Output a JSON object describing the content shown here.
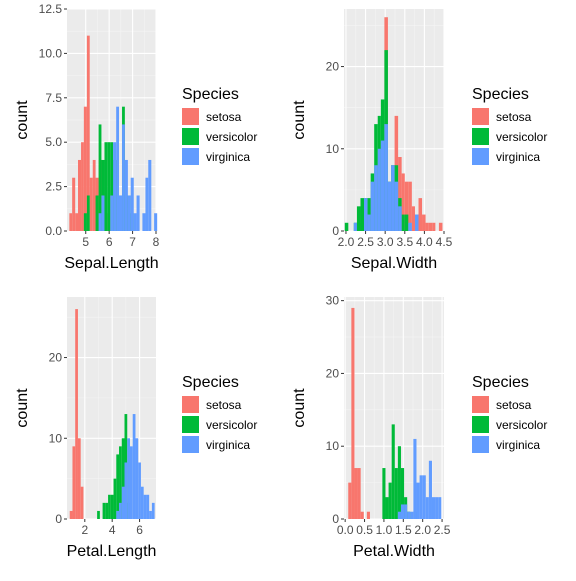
{
  "colors": {
    "panel_bg": "#ebebeb",
    "grid_major": "#ffffff",
    "grid_minor": "#f5f5f5",
    "tick": "#333333",
    "species": [
      "#f8766d",
      "#00ba38",
      "#619cff"
    ]
  },
  "chart_data": [
    {
      "type": "bar",
      "xlabel": "Sepal.Length",
      "ylabel": "count",
      "xlim": [
        4.2,
        8.0
      ],
      "ylim": [
        0,
        12.5
      ],
      "xticks": [
        5,
        6,
        7,
        8
      ],
      "xtick_labels": [
        "5",
        "6",
        "7",
        "8"
      ],
      "yticks": [
        0,
        2.5,
        5,
        7.5,
        10,
        12.5
      ],
      "ytick_labels": [
        "0.0",
        "2.5",
        "5.0",
        "7.5",
        "10.0",
        "12.5"
      ],
      "legend": {
        "title": "Species",
        "labels": [
          "setosa",
          "versicolor",
          "virginica"
        ],
        "position": "right"
      },
      "series": [
        {
          "name": "setosa",
          "bins": [
            [
              4.3,
              4.42,
              1
            ],
            [
              4.42,
              4.55,
              3
            ],
            [
              4.55,
              4.67,
              1
            ],
            [
              4.67,
              4.8,
              4
            ],
            [
              4.8,
              4.92,
              5
            ],
            [
              4.92,
              5.05,
              7
            ],
            [
              5.05,
              5.17,
              11
            ],
            [
              5.17,
              5.3,
              3
            ],
            [
              5.3,
              5.42,
              4
            ],
            [
              5.42,
              5.55,
              3
            ],
            [
              5.55,
              5.67,
              4
            ],
            [
              5.67,
              5.8,
              2
            ],
            [
              5.8,
              5.92,
              1
            ]
          ]
        },
        {
          "name": "versicolor",
          "bins": [
            [
              4.92,
              5.05,
              1
            ],
            [
              5.05,
              5.17,
              2
            ],
            [
              5.42,
              5.55,
              2
            ],
            [
              5.55,
              5.67,
              6
            ],
            [
              5.67,
              5.8,
              4
            ],
            [
              5.8,
              5.92,
              5
            ],
            [
              5.92,
              6.05,
              5
            ],
            [
              6.05,
              6.17,
              5
            ],
            [
              6.17,
              6.3,
              4
            ],
            [
              6.3,
              6.42,
              4
            ],
            [
              6.42,
              6.55,
              2
            ],
            [
              6.55,
              6.67,
              7
            ],
            [
              6.67,
              6.8,
              2
            ],
            [
              6.8,
              6.92,
              2
            ],
            [
              6.92,
              7.05,
              1
            ]
          ]
        },
        {
          "name": "virginica",
          "bins": [
            [
              5.55,
              5.67,
              1
            ],
            [
              5.67,
              5.8,
              2
            ],
            [
              6.05,
              6.17,
              2
            ],
            [
              6.17,
              6.3,
              5
            ],
            [
              6.3,
              6.42,
              7
            ],
            [
              6.42,
              6.55,
              2
            ],
            [
              6.55,
              6.67,
              6
            ],
            [
              6.67,
              6.8,
              4
            ],
            [
              6.8,
              6.92,
              2
            ],
            [
              6.92,
              7.05,
              3
            ],
            [
              7.05,
              7.17,
              1
            ],
            [
              7.17,
              7.3,
              2
            ],
            [
              7.42,
              7.55,
              1
            ],
            [
              7.55,
              7.67,
              3
            ],
            [
              7.67,
              7.8,
              4
            ],
            [
              7.92,
              8.05,
              1
            ]
          ]
        }
      ]
    },
    {
      "type": "bar",
      "xlabel": "Sepal.Width",
      "ylabel": "count",
      "xlim": [
        1.95,
        4.5
      ],
      "ylim": [
        0,
        27
      ],
      "xticks": [
        2.0,
        2.5,
        3.0,
        3.5,
        4.0,
        4.5
      ],
      "xtick_labels": [
        "2.0",
        "2.5",
        "3.0",
        "3.5",
        "4.0",
        "4.5"
      ],
      "yticks": [
        0,
        10,
        20
      ],
      "ytick_labels": [
        "0",
        "10",
        "20"
      ],
      "legend": {
        "title": "Species",
        "labels": [
          "setosa",
          "versicolor",
          "virginica"
        ],
        "position": "right"
      },
      "series": [
        {
          "name": "setosa",
          "bins": [
            [
              2.28,
              2.37,
              1
            ],
            [
              2.89,
              2.98,
              6
            ],
            [
              2.98,
              3.07,
              26
            ],
            [
              3.07,
              3.15,
              5
            ],
            [
              3.15,
              3.24,
              5
            ],
            [
              3.24,
              3.33,
              14
            ],
            [
              3.33,
              3.42,
              9
            ],
            [
              3.42,
              3.5,
              7
            ],
            [
              3.5,
              3.59,
              6
            ],
            [
              3.59,
              3.68,
              6
            ],
            [
              3.68,
              3.76,
              3
            ],
            [
              3.76,
              3.85,
              2
            ],
            [
              3.85,
              3.94,
              4
            ],
            [
              3.94,
              4.03,
              2
            ],
            [
              4.03,
              4.11,
              1
            ],
            [
              4.11,
              4.2,
              1
            ],
            [
              4.2,
              4.28,
              1
            ],
            [
              4.37,
              4.46,
              1
            ]
          ]
        },
        {
          "name": "versicolor",
          "bins": [
            [
              1.97,
              2.06,
              1
            ],
            [
              2.2,
              2.28,
              1
            ],
            [
              2.28,
              2.37,
              3
            ],
            [
              2.37,
              2.46,
              4
            ],
            [
              2.46,
              2.55,
              4
            ],
            [
              2.55,
              2.63,
              4
            ],
            [
              2.63,
              2.72,
              7
            ],
            [
              2.72,
              2.81,
              13
            ],
            [
              2.81,
              2.89,
              14
            ],
            [
              2.89,
              2.98,
              16
            ],
            [
              2.98,
              3.07,
              22
            ],
            [
              3.07,
              3.15,
              6
            ],
            [
              3.15,
              3.24,
              8
            ],
            [
              3.24,
              3.33,
              8
            ],
            [
              3.33,
              3.42,
              4
            ],
            [
              3.42,
              3.5,
              2
            ],
            [
              3.5,
              3.59,
              2
            ]
          ]
        },
        {
          "name": "virginica",
          "bins": [
            [
              2.2,
              2.28,
              1
            ],
            [
              2.46,
              2.55,
              4
            ],
            [
              2.55,
              2.63,
              2
            ],
            [
              2.63,
              2.72,
              6
            ],
            [
              2.72,
              2.81,
              8
            ],
            [
              2.81,
              2.89,
              10
            ],
            [
              2.89,
              2.98,
              11
            ],
            [
              2.98,
              3.07,
              13
            ],
            [
              3.07,
              3.15,
              6
            ],
            [
              3.15,
              3.24,
              8
            ],
            [
              3.24,
              3.33,
              6
            ],
            [
              3.33,
              3.42,
              3
            ],
            [
              3.59,
              3.68,
              1
            ],
            [
              3.76,
              3.85,
              2
            ]
          ]
        }
      ]
    },
    {
      "type": "bar",
      "xlabel": "Petal.Length",
      "ylabel": "count",
      "xlim": [
        0.7,
        7.2
      ],
      "ylim": [
        0,
        27.5
      ],
      "xticks": [
        2,
        4,
        6
      ],
      "xtick_labels": [
        "2",
        "4",
        "6"
      ],
      "yticks": [
        0,
        10,
        20
      ],
      "ytick_labels": [
        "0",
        "10",
        "20"
      ],
      "legend": {
        "title": "Species",
        "labels": [
          "setosa",
          "versicolor",
          "virginica"
        ],
        "position": "right"
      },
      "series": [
        {
          "name": "setosa",
          "bins": [
            [
              0.9,
              1.1,
              1
            ],
            [
              1.1,
              1.3,
              9
            ],
            [
              1.3,
              1.5,
              26
            ],
            [
              1.5,
              1.7,
              10
            ],
            [
              1.7,
              1.9,
              4
            ]
          ]
        },
        {
          "name": "versicolor",
          "bins": [
            [
              2.9,
              3.1,
              1
            ],
            [
              3.3,
              3.5,
              2
            ],
            [
              3.5,
              3.7,
              2
            ],
            [
              3.7,
              3.9,
              3
            ],
            [
              3.9,
              4.1,
              3
            ],
            [
              4.1,
              4.3,
              5
            ],
            [
              4.3,
              4.5,
              8
            ],
            [
              4.5,
              4.7,
              9
            ],
            [
              4.7,
              4.9,
              10
            ],
            [
              4.9,
              5.1,
              13
            ],
            [
              5.1,
              5.3,
              2
            ]
          ]
        },
        {
          "name": "virginica",
          "bins": [
            [
              4.3,
              4.5,
              1
            ],
            [
              4.5,
              4.7,
              2
            ],
            [
              4.7,
              4.9,
              4
            ],
            [
              4.9,
              5.1,
              7
            ],
            [
              5.1,
              5.3,
              10
            ],
            [
              5.3,
              5.5,
              9
            ],
            [
              5.5,
              5.7,
              13
            ],
            [
              5.7,
              5.9,
              10
            ],
            [
              5.9,
              6.1,
              7
            ],
            [
              6.1,
              6.3,
              4
            ],
            [
              6.3,
              6.5,
              3
            ],
            [
              6.5,
              6.7,
              3
            ],
            [
              6.7,
              6.9,
              1
            ],
            [
              6.9,
              7.1,
              2
            ]
          ]
        }
      ]
    },
    {
      "type": "bar",
      "xlabel": "Petal.Width",
      "ylabel": "count",
      "xlim": [
        -0.03,
        2.55
      ],
      "ylim": [
        0,
        30.5
      ],
      "xticks": [
        0.0,
        0.5,
        1.0,
        1.5,
        2.0,
        2.5
      ],
      "xtick_labels": [
        "0.0",
        "0.5",
        "1.0",
        "1.5",
        "2.0",
        "2.5"
      ],
      "yticks": [
        0,
        10,
        20,
        30
      ],
      "ytick_labels": [
        "0",
        "10",
        "20",
        "30"
      ],
      "legend": {
        "title": "Species",
        "labels": [
          "setosa",
          "versicolor",
          "virginica"
        ],
        "position": "right"
      },
      "series": [
        {
          "name": "setosa",
          "bins": [
            [
              0.08,
              0.16,
              5
            ],
            [
              0.16,
              0.24,
              29
            ],
            [
              0.24,
              0.32,
              7
            ],
            [
              0.32,
              0.4,
              7
            ],
            [
              0.4,
              0.48,
              1
            ],
            [
              0.56,
              0.64,
              1
            ]
          ]
        },
        {
          "name": "versicolor",
          "bins": [
            [
              0.96,
              1.04,
              7
            ],
            [
              1.04,
              1.12,
              3
            ],
            [
              1.12,
              1.2,
              5
            ],
            [
              1.2,
              1.28,
              13
            ],
            [
              1.28,
              1.36,
              7
            ],
            [
              1.36,
              1.44,
              10
            ],
            [
              1.44,
              1.52,
              7
            ],
            [
              1.52,
              1.6,
              3
            ],
            [
              1.6,
              1.68,
              1
            ],
            [
              1.76,
              1.84,
              1
            ]
          ]
        },
        {
          "name": "virginica",
          "bins": [
            [
              1.36,
              1.44,
              1
            ],
            [
              1.44,
              1.52,
              2
            ],
            [
              1.52,
              1.6,
              2
            ],
            [
              1.6,
              1.68,
              1
            ],
            [
              1.68,
              1.76,
              1
            ],
            [
              1.76,
              1.84,
              11
            ],
            [
              1.84,
              1.92,
              5
            ],
            [
              1.92,
              2.0,
              6
            ],
            [
              2.0,
              2.08,
              6
            ],
            [
              2.08,
              2.16,
              3
            ],
            [
              2.16,
              2.24,
              8
            ],
            [
              2.24,
              2.32,
              3
            ],
            [
              2.32,
              2.4,
              3
            ],
            [
              2.4,
              2.48,
              3
            ]
          ]
        }
      ]
    }
  ]
}
